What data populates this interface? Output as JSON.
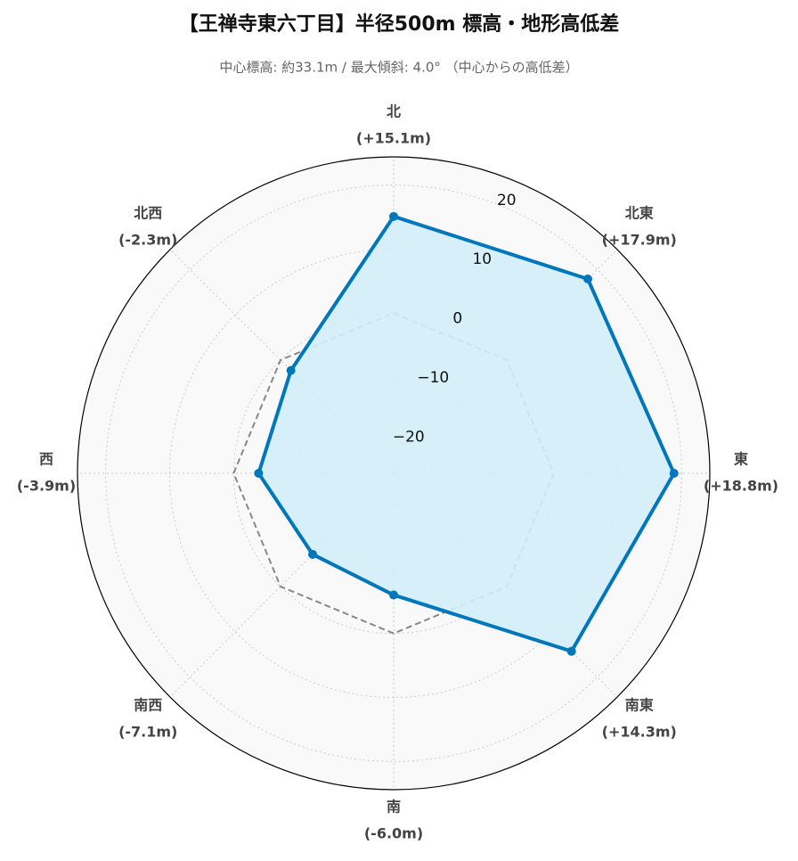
{
  "chart_data": {
    "type": "radar",
    "title": "【王禅寺東六丁目】半径500m 標高・地形高低差",
    "subtitle": "中心標高: 約33.1m / 最大傾斜: 4.0° （中心からの高低差）",
    "categories": [
      "北",
      "北東",
      "東",
      "南東",
      "南",
      "南西",
      "西",
      "北西"
    ],
    "values": [
      15.1,
      17.9,
      18.8,
      14.3,
      -6.0,
      -7.1,
      -3.9,
      -2.3
    ],
    "value_labels": [
      "(+15.1m)",
      "(+17.9m)",
      "(+18.8m)",
      "(+14.3m)",
      "(-6.0m)",
      "(-7.1m)",
      "(-3.9m)",
      "(-2.3m)"
    ],
    "color": "#0077bb",
    "fill": "#d2edf8",
    "baseline": 0,
    "ylim": [
      -25,
      24.4
    ],
    "yticks": [
      {
        "value": -20,
        "label": "−20"
      },
      {
        "value": -10,
        "label": "−10"
      },
      0,
      10,
      20
    ],
    "grid": true
  }
}
